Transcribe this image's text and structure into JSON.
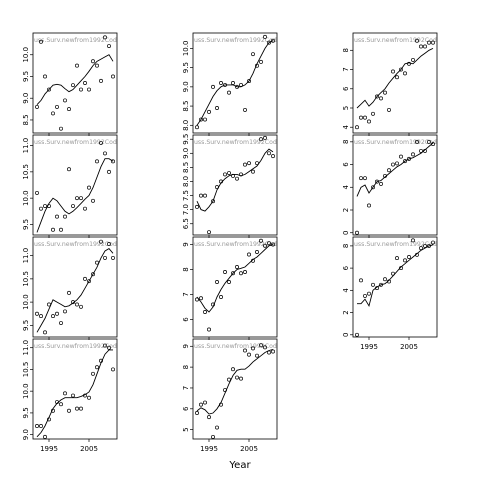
{
  "x_axis_title": "Year",
  "chart_data": [
    {
      "type": "scatter",
      "label": "uss.Surv.newfrom1992Cod",
      "col": 0,
      "row": 0,
      "ylim": [
        8.2,
        10.5
      ],
      "yticks": [
        8.5,
        9.0,
        9.5,
        10.0
      ],
      "x": [
        1992,
        1993,
        1994,
        1995,
        1996,
        1997,
        1998,
        1999,
        2000,
        2001,
        2002,
        2003,
        2004,
        2005,
        2006,
        2007,
        2008,
        2009,
        2010,
        2011
      ],
      "y": [
        8.8,
        10.3,
        9.5,
        9.2,
        8.65,
        8.8,
        8.3,
        8.95,
        8.75,
        9.3,
        9.75,
        9.2,
        9.35,
        9.2,
        9.85,
        9.75,
        9.4,
        10.4,
        10.2,
        9.5
      ],
      "line": [
        8.85,
        8.95,
        9.1,
        9.2,
        9.3,
        9.32,
        9.3,
        9.22,
        9.15,
        9.2,
        9.3,
        9.4,
        9.5,
        9.62,
        9.75,
        9.85,
        9.9,
        9.95,
        10.0,
        9.85
      ]
    },
    {
      "type": "scatter",
      "label": "uss.Surv.newfrom1992Cod",
      "col": 0,
      "row": 1,
      "ylim": [
        9.3,
        11.2
      ],
      "yticks": [
        9.5,
        10.0,
        10.5,
        11.0
      ],
      "x": [
        1992,
        1993,
        1994,
        1995,
        1996,
        1997,
        1998,
        1999,
        2000,
        2001,
        2002,
        2003,
        2004,
        2005,
        2006,
        2007,
        2008,
        2009,
        2010,
        2011
      ],
      "y": [
        10.1,
        9.8,
        9.85,
        9.85,
        9.4,
        9.65,
        9.4,
        9.65,
        10.55,
        9.85,
        10.0,
        10.0,
        9.8,
        10.2,
        9.95,
        10.7,
        11.05,
        10.85,
        10.5,
        10.7
      ],
      "line": [
        9.35,
        9.55,
        9.75,
        9.9,
        10.0,
        9.95,
        9.85,
        9.75,
        9.7,
        9.75,
        9.82,
        9.9,
        9.98,
        10.05,
        10.2,
        10.4,
        10.6,
        10.75,
        10.75,
        10.7
      ]
    },
    {
      "type": "scatter",
      "label": "uss.Surv.newfrom1992Cod",
      "col": 0,
      "row": 2,
      "ylim": [
        9.25,
        11.4
      ],
      "yticks": [
        9.5,
        10.0,
        10.5,
        11.0
      ],
      "x": [
        1992,
        1993,
        1994,
        1995,
        1996,
        1997,
        1998,
        1999,
        2000,
        2001,
        2002,
        2003,
        2004,
        2005,
        2006,
        2007,
        2008,
        2009,
        2010,
        2011
      ],
      "y": [
        9.75,
        9.7,
        9.35,
        9.95,
        9.7,
        9.75,
        9.55,
        9.8,
        10.2,
        10.0,
        9.95,
        9.9,
        10.5,
        10.45,
        10.6,
        10.85,
        11.3,
        10.95,
        11.25,
        10.95
      ],
      "line": [
        9.35,
        9.5,
        9.65,
        9.85,
        10.05,
        10.0,
        9.95,
        9.9,
        9.92,
        9.98,
        10.05,
        10.15,
        10.3,
        10.45,
        10.6,
        10.75,
        10.95,
        11.1,
        11.15,
        11.05
      ]
    },
    {
      "type": "scatter",
      "label": "uss.Surv.newfrom1992Cod",
      "col": 0,
      "row": 3,
      "ylim": [
        8.9,
        11.2
      ],
      "yticks": [
        9.0,
        9.5,
        10.0,
        10.5,
        11.0
      ],
      "x": [
        1992,
        1993,
        1994,
        1995,
        1996,
        1997,
        1998,
        1999,
        2000,
        2001,
        2002,
        2003,
        2004,
        2005,
        2006,
        2007,
        2008,
        2009,
        2010,
        2011
      ],
      "y": [
        9.2,
        9.2,
        8.95,
        9.35,
        9.55,
        9.75,
        9.7,
        9.95,
        9.55,
        9.9,
        9.6,
        9.6,
        9.9,
        9.85,
        10.4,
        10.55,
        10.7,
        11.05,
        11.0,
        10.5
      ],
      "line": [
        8.95,
        9.05,
        9.2,
        9.4,
        9.6,
        9.72,
        9.8,
        9.85,
        9.85,
        9.85,
        9.85,
        9.88,
        9.92,
        9.98,
        10.15,
        10.4,
        10.65,
        10.85,
        10.95,
        10.95
      ]
    },
    {
      "type": "scatter",
      "label": "uss.Surv.newfrom1992Cod",
      "col": 1,
      "row": 0,
      "ylim": [
        7.8,
        10.4
      ],
      "yticks": [
        8.0,
        8.5,
        9.0,
        9.5,
        10.0
      ],
      "x": [
        1992,
        1993,
        1994,
        1995,
        1996,
        1997,
        1998,
        1999,
        2000,
        2001,
        2002,
        2003,
        2004,
        2005,
        2006,
        2007,
        2008,
        2009,
        2010,
        2011
      ],
      "y": [
        7.95,
        8.15,
        8.15,
        8.35,
        9.0,
        8.45,
        9.1,
        9.05,
        8.85,
        9.1,
        9.0,
        9.05,
        8.4,
        9.15,
        9.85,
        9.55,
        9.65,
        10.3,
        10.15,
        10.2
      ],
      "line": [
        8.0,
        8.15,
        8.35,
        8.55,
        8.75,
        8.9,
        9.0,
        9.05,
        9.05,
        9.05,
        9.0,
        9.0,
        9.05,
        9.15,
        9.35,
        9.6,
        9.8,
        10.0,
        10.15,
        10.2
      ]
    },
    {
      "type": "scatter",
      "label": "uss.Surv.newfrom1992Cod",
      "col": 1,
      "row": 1,
      "ylim": [
        6.1,
        9.65
      ],
      "yticks": [
        6.5,
        7.0,
        7.5,
        8.0,
        8.5,
        9.0,
        9.5
      ],
      "x": [
        1992,
        1993,
        1994,
        1995,
        1996,
        1997,
        1998,
        1999,
        2000,
        2001,
        2002,
        2003,
        2004,
        2005,
        2006,
        2007,
        2008,
        2009,
        2010,
        2011
      ],
      "y": [
        7.1,
        7.5,
        7.5,
        6.2,
        7.3,
        7.8,
        8.0,
        8.25,
        8.3,
        8.2,
        8.1,
        8.25,
        8.6,
        8.65,
        8.35,
        8.65,
        9.5,
        9.55,
        9.0,
        8.9
      ],
      "line": [
        7.3,
        7.0,
        6.95,
        7.1,
        7.3,
        7.7,
        7.95,
        8.1,
        8.2,
        8.25,
        8.25,
        8.2,
        8.25,
        8.35,
        8.45,
        8.55,
        8.75,
        9.0,
        9.15,
        9.05
      ]
    },
    {
      "type": "scatter",
      "label": "uss.Surv.newfrom1992Cod",
      "col": 1,
      "row": 2,
      "ylim": [
        5.3,
        9.3
      ],
      "yticks": [
        6,
        7,
        8,
        9
      ],
      "x": [
        1992,
        1993,
        1994,
        1995,
        1996,
        1997,
        1998,
        1999,
        2000,
        2001,
        2002,
        2003,
        2004,
        2005,
        2006,
        2007,
        2008,
        2009,
        2010,
        2011
      ],
      "y": [
        6.8,
        6.85,
        6.3,
        5.6,
        6.6,
        7.5,
        6.9,
        7.9,
        7.5,
        7.85,
        8.1,
        7.85,
        7.9,
        8.6,
        8.35,
        8.7,
        9.15,
        8.95,
        9.05,
        9.0
      ],
      "line": [
        6.9,
        6.7,
        6.45,
        6.3,
        6.5,
        6.9,
        7.2,
        7.45,
        7.65,
        7.85,
        8.0,
        8.05,
        8.1,
        8.25,
        8.4,
        8.5,
        8.65,
        8.8,
        8.95,
        9.0
      ]
    },
    {
      "type": "scatter",
      "label": "uss.Surv.newfrom1992Cod",
      "col": 1,
      "row": 3,
      "ylim": [
        4.55,
        9.35
      ],
      "yticks": [
        5,
        6,
        7,
        8,
        9
      ],
      "x": [
        1992,
        1993,
        1994,
        1995,
        1996,
        1997,
        1998,
        1999,
        2000,
        2001,
        2002,
        2003,
        2004,
        2005,
        2006,
        2007,
        2008,
        2009,
        2010,
        2011
      ],
      "y": [
        5.8,
        6.2,
        6.3,
        5.6,
        4.65,
        5.1,
        6.2,
        6.9,
        7.4,
        7.9,
        7.5,
        7.45,
        8.8,
        8.6,
        8.9,
        8.55,
        9.05,
        8.95,
        8.7,
        8.75
      ],
      "line": [
        5.9,
        6.05,
        5.95,
        5.75,
        5.8,
        6.0,
        6.3,
        6.75,
        7.2,
        7.6,
        7.85,
        7.9,
        7.9,
        8.05,
        8.25,
        8.4,
        8.55,
        8.7,
        8.8,
        8.85
      ]
    },
    {
      "type": "scatter",
      "label": "uss.Surv.newfrom1992Cod",
      "col": 2,
      "row": 0,
      "ylim": [
        3.7,
        8.9
      ],
      "yticks": [
        4,
        5,
        6,
        7,
        8
      ],
      "x": [
        1992,
        1993,
        1994,
        1995,
        1996,
        1997,
        1998,
        1999,
        2000,
        2001,
        2002,
        2003,
        2004,
        2005,
        2006,
        2007,
        2008,
        2009,
        2010,
        2011
      ],
      "y": [
        4.0,
        4.5,
        4.5,
        4.3,
        4.7,
        5.6,
        5.5,
        5.8,
        4.9,
        6.9,
        6.6,
        7.0,
        6.8,
        7.3,
        7.5,
        8.5,
        8.2,
        8.2,
        8.4,
        8.4
      ],
      "line": [
        5.0,
        5.2,
        5.4,
        5.1,
        5.3,
        5.6,
        5.8,
        6.0,
        6.3,
        6.55,
        6.8,
        7.0,
        7.3,
        7.35,
        7.3,
        7.5,
        7.7,
        7.85,
        8.0,
        8.1
      ]
    },
    {
      "type": "scatter",
      "label": "uss.Surv.newfrom1992Cod",
      "col": 2,
      "row": 1,
      "ylim": [
        -0.2,
        8.6
      ],
      "yticks": [
        0,
        2,
        4,
        6,
        8
      ],
      "x": [
        1992,
        1993,
        1994,
        1995,
        1996,
        1997,
        1998,
        1999,
        2000,
        2001,
        2002,
        2003,
        2004,
        2005,
        2006,
        2007,
        2008,
        2009,
        2010,
        2011
      ],
      "y": [
        0.0,
        4.8,
        4.8,
        2.4,
        4.0,
        4.5,
        4.3,
        5.0,
        5.5,
        6.0,
        6.1,
        6.7,
        6.3,
        6.5,
        6.9,
        8.0,
        7.2,
        7.2,
        8.0,
        7.8
      ],
      "line": [
        3.2,
        4.0,
        4.2,
        3.5,
        4.0,
        4.5,
        4.6,
        4.9,
        5.2,
        5.5,
        5.8,
        6.0,
        6.3,
        6.5,
        6.6,
        6.8,
        7.0,
        7.3,
        7.6,
        7.9
      ]
    },
    {
      "type": "scatter",
      "label": "uss.Surv.newfrom1992Cod",
      "col": 2,
      "row": 2,
      "ylim": [
        -0.2,
        8.8
      ],
      "yticks": [
        0,
        2,
        4,
        6,
        8
      ],
      "x": [
        1992,
        1993,
        1994,
        1995,
        1996,
        1997,
        1998,
        1999,
        2000,
        2001,
        2002,
        2003,
        2004,
        2005,
        2006,
        2007,
        2008,
        2009,
        2010,
        2011
      ],
      "y": [
        0.0,
        4.9,
        3.5,
        3.7,
        4.5,
        4.2,
        4.5,
        5.0,
        4.8,
        5.5,
        6.9,
        6.0,
        6.7,
        7.0,
        8.5,
        7.2,
        7.8,
        8.0,
        8.0,
        8.3
      ],
      "line": [
        2.8,
        2.8,
        3.2,
        2.6,
        4.0,
        4.3,
        4.5,
        4.6,
        4.9,
        5.3,
        5.7,
        6.1,
        6.4,
        6.7,
        7.0,
        7.3,
        7.6,
        7.8,
        8.0,
        8.1
      ]
    }
  ]
}
